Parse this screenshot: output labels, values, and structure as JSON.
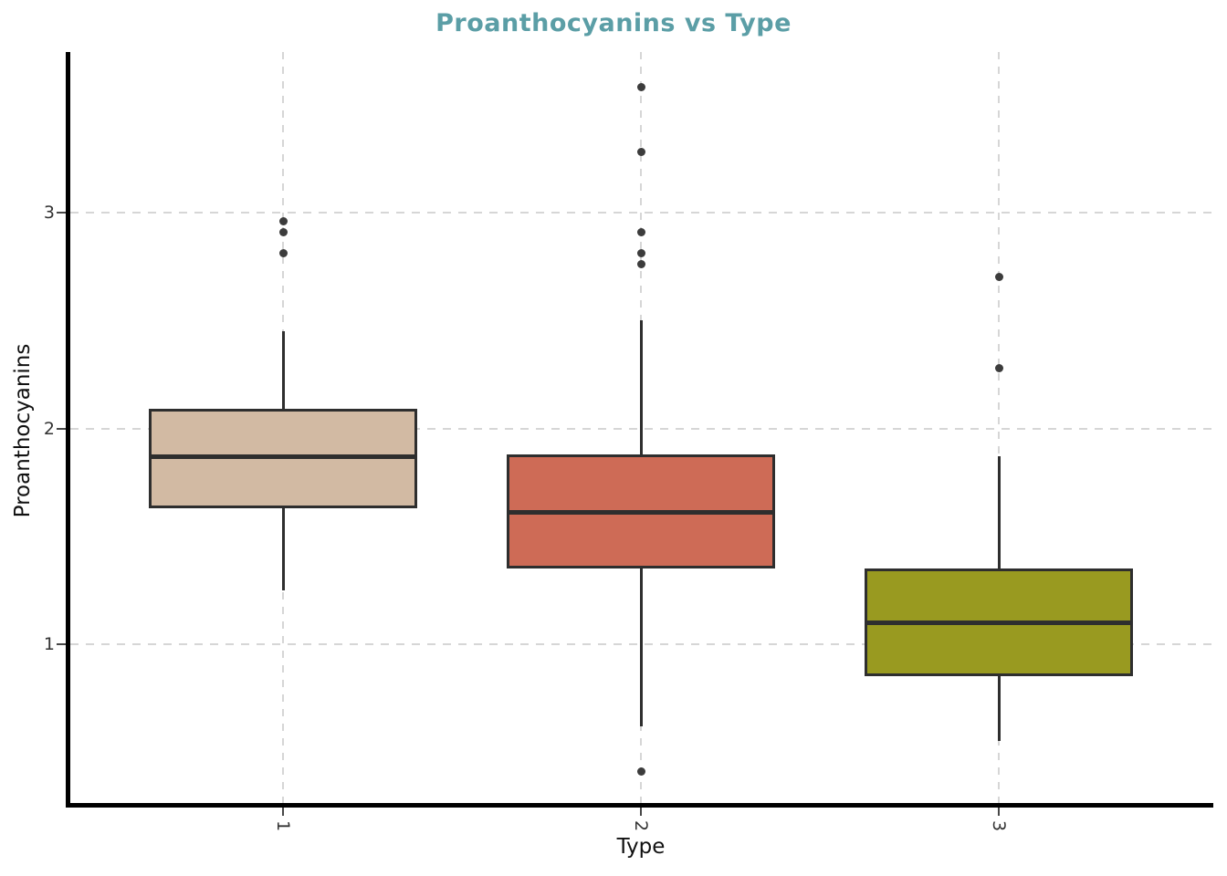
{
  "chart_data": {
    "type": "boxplot",
    "title": "Proanthocyanins vs Type",
    "xlabel": "Type",
    "ylabel": "Proanthocyanins",
    "categories": [
      "1",
      "2",
      "3"
    ],
    "y_ticks": [
      1,
      2,
      3
    ],
    "ylim": [
      0.25,
      3.73
    ],
    "grid": "dashed",
    "series": [
      {
        "category": "1",
        "fill": "#D2BAA3",
        "whisker_low": 1.25,
        "q1": 1.63,
        "median": 1.87,
        "q3": 2.09,
        "whisker_high": 2.45,
        "outliers": [
          2.81,
          2.91,
          2.96
        ]
      },
      {
        "category": "2",
        "fill": "#CE6B56",
        "whisker_low": 0.62,
        "q1": 1.35,
        "median": 1.61,
        "q3": 1.88,
        "whisker_high": 2.5,
        "outliers": [
          0.41,
          2.76,
          2.81,
          2.91,
          3.28,
          3.58
        ]
      },
      {
        "category": "3",
        "fill": "#999A20",
        "whisker_low": 0.55,
        "q1": 0.85,
        "median": 1.1,
        "q3": 1.35,
        "whisker_high": 1.87,
        "outliers": [
          2.28,
          2.7
        ]
      }
    ],
    "colors": {
      "title": "#5B9EA6",
      "axis_line": "#000000",
      "tick_text": "#333333",
      "tick_mark": "#474747",
      "gridline": "#D6D6D6",
      "box_border": "#2E2E2E",
      "median": "#2E2E2E",
      "whisker": "#2E2E2E",
      "outlier": "#3C3C3C",
      "background": "#FFFFFF"
    }
  }
}
